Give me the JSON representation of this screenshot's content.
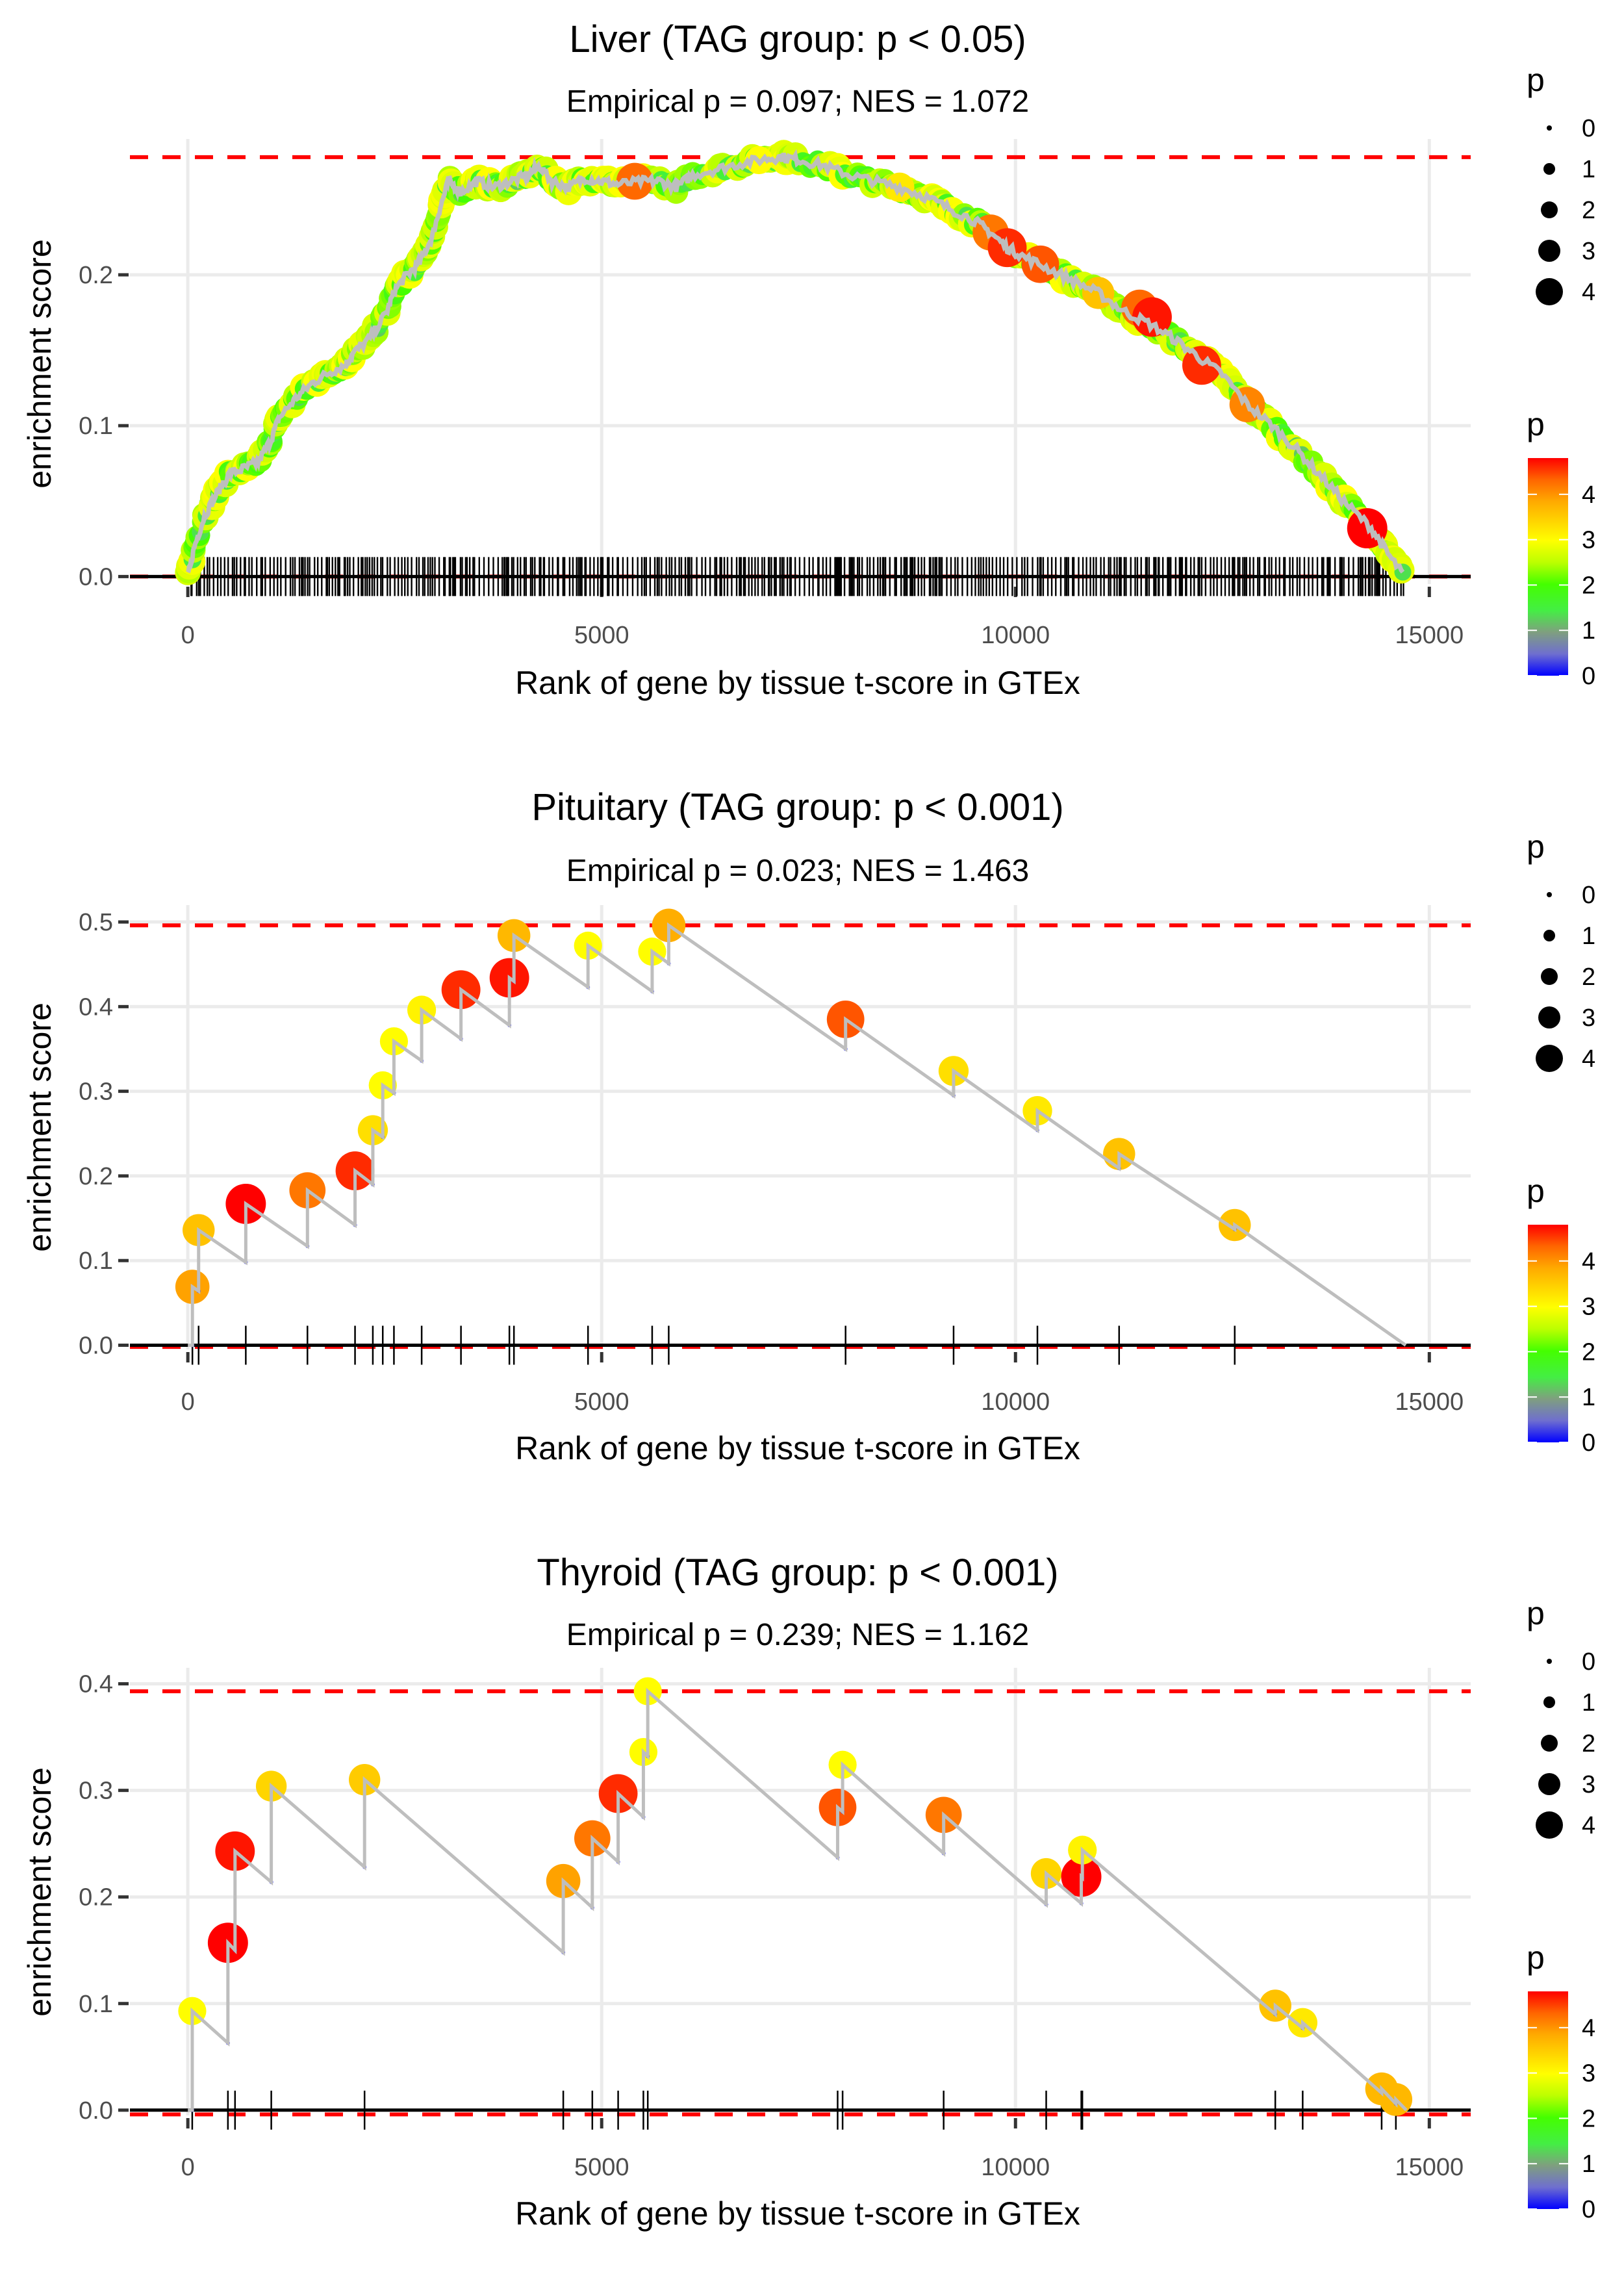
{
  "chart_data": [
    {
      "type": "line",
      "title": "Liver (TAG group: p < 0.05)",
      "subtitle": "Empirical p = 0.097; NES = 1.072",
      "xlabel": "Rank of gene by tissue t-score in GTEx",
      "ylabel": "enrichment score",
      "xlim": [
        -700,
        15500
      ],
      "ylim": [
        -0.005,
        0.29
      ],
      "xticks": [
        0,
        5000,
        10000,
        15000
      ],
      "xtick_labels": [
        "0",
        "5000",
        "10000",
        "15000"
      ],
      "yticks": [
        0.0,
        0.1,
        0.2
      ],
      "ytick_labels": [
        "0.0",
        "0.1",
        "0.2"
      ],
      "max_es": 0.278,
      "min_es": 0.0,
      "dense": true,
      "curve": [
        [
          0,
          0.0
        ],
        [
          80,
          0.02
        ],
        [
          200,
          0.04
        ],
        [
          350,
          0.055
        ],
        [
          500,
          0.068
        ],
        [
          700,
          0.072
        ],
        [
          850,
          0.076
        ],
        [
          1000,
          0.09
        ],
        [
          1100,
          0.105
        ],
        [
          1300,
          0.118
        ],
        [
          1500,
          0.128
        ],
        [
          1700,
          0.135
        ],
        [
          1900,
          0.14
        ],
        [
          2000,
          0.148
        ],
        [
          2200,
          0.158
        ],
        [
          2400,
          0.175
        ],
        [
          2500,
          0.19
        ],
        [
          2650,
          0.2
        ],
        [
          2800,
          0.208
        ],
        [
          2950,
          0.225
        ],
        [
          3050,
          0.245
        ],
        [
          3150,
          0.262
        ],
        [
          3300,
          0.255
        ],
        [
          3500,
          0.262
        ],
        [
          3700,
          0.258
        ],
        [
          3900,
          0.262
        ],
        [
          4100,
          0.266
        ],
        [
          4250,
          0.272
        ],
        [
          4400,
          0.262
        ],
        [
          4600,
          0.258
        ],
        [
          4800,
          0.264
        ],
        [
          5000,
          0.262
        ],
        [
          5200,
          0.26
        ],
        [
          5500,
          0.262
        ],
        [
          5700,
          0.262
        ],
        [
          5900,
          0.258
        ],
        [
          6100,
          0.266
        ],
        [
          6400,
          0.27
        ],
        [
          6700,
          0.274
        ],
        [
          7000,
          0.277
        ],
        [
          7200,
          0.278
        ],
        [
          7400,
          0.276
        ],
        [
          7700,
          0.272
        ],
        [
          8000,
          0.266
        ],
        [
          8300,
          0.262
        ],
        [
          8600,
          0.258
        ],
        [
          8900,
          0.252
        ],
        [
          9200,
          0.244
        ],
        [
          9500,
          0.236
        ],
        [
          9700,
          0.228
        ],
        [
          9900,
          0.218
        ],
        [
          10100,
          0.212
        ],
        [
          10400,
          0.204
        ],
        [
          10700,
          0.196
        ],
        [
          11000,
          0.188
        ],
        [
          11300,
          0.176
        ],
        [
          11600,
          0.168
        ],
        [
          11900,
          0.158
        ],
        [
          12200,
          0.146
        ],
        [
          12500,
          0.134
        ],
        [
          12800,
          0.114
        ],
        [
          13100,
          0.1
        ],
        [
          13400,
          0.084
        ],
        [
          13700,
          0.066
        ],
        [
          14000,
          0.048
        ],
        [
          14300,
          0.032
        ],
        [
          14500,
          0.015
        ],
        [
          14700,
          0.0
        ]
      ],
      "highlight_points": [
        {
          "x": 5400,
          "y": 0.262,
          "p": 4.3
        },
        {
          "x": 9700,
          "y": 0.228,
          "p": 4.2
        },
        {
          "x": 9900,
          "y": 0.218,
          "p": 4.6
        },
        {
          "x": 10300,
          "y": 0.207,
          "p": 4.4
        },
        {
          "x": 11000,
          "y": 0.188,
          "p": 3.6
        },
        {
          "x": 11500,
          "y": 0.178,
          "p": 4.3
        },
        {
          "x": 11650,
          "y": 0.172,
          "p": 4.7
        },
        {
          "x": 12250,
          "y": 0.14,
          "p": 4.6
        },
        {
          "x": 12800,
          "y": 0.114,
          "p": 4.1
        },
        {
          "x": 14250,
          "y": 0.032,
          "p": 4.8
        },
        {
          "x": 8600,
          "y": 0.258,
          "p": 3.2
        },
        {
          "x": 6900,
          "y": 0.276,
          "p": 3.0
        }
      ]
    },
    {
      "type": "line",
      "title": "Pituitary (TAG group: p < 0.001)",
      "subtitle": "Empirical p = 0.023; NES = 1.463",
      "xlabel": "Rank of gene by tissue t-score in GTEx",
      "ylabel": "enrichment score",
      "xlim": [
        -700,
        15500
      ],
      "ylim": [
        -0.005,
        0.52
      ],
      "xticks": [
        0,
        5000,
        10000,
        15000
      ],
      "xtick_labels": [
        "0",
        "5000",
        "10000",
        "15000"
      ],
      "yticks": [
        0.0,
        0.1,
        0.2,
        0.3,
        0.4,
        0.5
      ],
      "ytick_labels": [
        "0.0",
        "0.1",
        "0.2",
        "0.3",
        "0.4",
        "0.5"
      ],
      "max_es": 0.496,
      "min_es": -0.002,
      "end_rank": 14715,
      "hits": [
        {
          "x": 55,
          "before": 0.0,
          "after": 0.069,
          "p": 3.9
        },
        {
          "x": 130,
          "before": 0.064,
          "after": 0.136,
          "p": 3.6
        },
        {
          "x": 700,
          "before": 0.098,
          "after": 0.167,
          "p": 4.8
        },
        {
          "x": 1445,
          "before": 0.117,
          "after": 0.183,
          "p": 4.2
        },
        {
          "x": 2020,
          "before": 0.142,
          "after": 0.206,
          "p": 4.6
        },
        {
          "x": 2235,
          "before": 0.19,
          "after": 0.254,
          "p": 3.3
        },
        {
          "x": 2355,
          "before": 0.246,
          "after": 0.307,
          "p": 3.0
        },
        {
          "x": 2490,
          "before": 0.298,
          "after": 0.359,
          "p": 3.0
        },
        {
          "x": 2825,
          "before": 0.336,
          "after": 0.396,
          "p": 3.1
        },
        {
          "x": 3300,
          "before": 0.362,
          "after": 0.42,
          "p": 4.6
        },
        {
          "x": 3885,
          "before": 0.378,
          "after": 0.434,
          "p": 4.7
        },
        {
          "x": 3940,
          "before": 0.43,
          "after": 0.484,
          "p": 3.7
        },
        {
          "x": 4835,
          "before": 0.423,
          "after": 0.472,
          "p": 3.0
        },
        {
          "x": 5610,
          "before": 0.418,
          "after": 0.465,
          "p": 3.0
        },
        {
          "x": 5810,
          "before": 0.451,
          "after": 0.496,
          "p": 3.8
        },
        {
          "x": 7947,
          "before": 0.35,
          "after": 0.385,
          "p": 4.4
        },
        {
          "x": 9252,
          "before": 0.295,
          "after": 0.324,
          "p": 3.3
        },
        {
          "x": 10265,
          "before": 0.254,
          "after": 0.277,
          "p": 3.2
        },
        {
          "x": 11252,
          "before": 0.209,
          "after": 0.226,
          "p": 3.6
        },
        {
          "x": 12649,
          "before": 0.137,
          "after": 0.142,
          "p": 3.6
        }
      ]
    },
    {
      "type": "line",
      "title": "Thyroid (TAG group: p < 0.001)",
      "subtitle": "Empirical p = 0.239; NES = 1.162",
      "xlabel": "Rank of gene by tissue t-score in GTEx",
      "ylabel": "enrichment score",
      "xlim": [
        -700,
        15500
      ],
      "ylim": [
        -0.005,
        0.415
      ],
      "xticks": [
        0,
        5000,
        10000,
        15000
      ],
      "xtick_labels": [
        "0",
        "5000",
        "10000",
        "15000"
      ],
      "yticks": [
        0.0,
        0.1,
        0.2,
        0.3,
        0.4
      ],
      "ytick_labels": [
        "0.0",
        "0.1",
        "0.2",
        "0.3",
        "0.4"
      ],
      "max_es": 0.393,
      "min_es": -0.004,
      "end_rank": 14722,
      "hits": [
        {
          "x": 53,
          "before": 0.0,
          "after": 0.093,
          "p": 3.0
        },
        {
          "x": 484,
          "before": 0.063,
          "after": 0.157,
          "p": 4.8
        },
        {
          "x": 570,
          "before": 0.15,
          "after": 0.243,
          "p": 4.7
        },
        {
          "x": 1008,
          "before": 0.214,
          "after": 0.304,
          "p": 3.4
        },
        {
          "x": 2135,
          "before": 0.228,
          "after": 0.31,
          "p": 3.5
        },
        {
          "x": 4536,
          "before": 0.148,
          "after": 0.215,
          "p": 3.9
        },
        {
          "x": 4887,
          "before": 0.19,
          "after": 0.255,
          "p": 4.2
        },
        {
          "x": 5199,
          "before": 0.233,
          "after": 0.297,
          "p": 4.6
        },
        {
          "x": 5504,
          "before": 0.275,
          "after": 0.336,
          "p": 3.0
        },
        {
          "x": 5557,
          "before": 0.332,
          "after": 0.393,
          "p": 3.0
        },
        {
          "x": 7851,
          "before": 0.237,
          "after": 0.284,
          "p": 4.4
        },
        {
          "x": 7911,
          "before": 0.28,
          "after": 0.324,
          "p": 3.0
        },
        {
          "x": 9132,
          "before": 0.241,
          "after": 0.277,
          "p": 4.2
        },
        {
          "x": 10371,
          "before": 0.193,
          "after": 0.222,
          "p": 3.4
        },
        {
          "x": 10795,
          "before": 0.194,
          "after": 0.219,
          "p": 4.8
        },
        {
          "x": 10808,
          "before": 0.218,
          "after": 0.244,
          "p": 3.1
        },
        {
          "x": 13139,
          "before": 0.09,
          "after": 0.098,
          "p": 3.6
        },
        {
          "x": 13470,
          "before": 0.077,
          "after": 0.082,
          "p": 3.2
        },
        {
          "x": 14424,
          "before": 0.016,
          "after": 0.02,
          "p": 3.7
        },
        {
          "x": 14596,
          "before": 0.006,
          "after": 0.01,
          "p": 3.7
        }
      ]
    }
  ],
  "legend": {
    "size_title": "p",
    "size_labels": [
      "0",
      "1",
      "2",
      "3",
      "4"
    ],
    "color_title": "p",
    "color_labels": [
      "4",
      "3",
      "2",
      "1",
      "0"
    ],
    "color_scale": [
      "#0000ff",
      "#7f7fbf",
      "#5fcf5f",
      "#44ff00",
      "#ccff00",
      "#ffff00",
      "#ffaa00",
      "#ff5500",
      "#ff0000"
    ],
    "color_range": [
      0,
      4.8
    ]
  },
  "colors": {
    "max_line": "#ff0000",
    "es_line": "#bebebe",
    "hit_tick": "#000000",
    "baseline": "#000000",
    "grid": "#ebebeb"
  }
}
